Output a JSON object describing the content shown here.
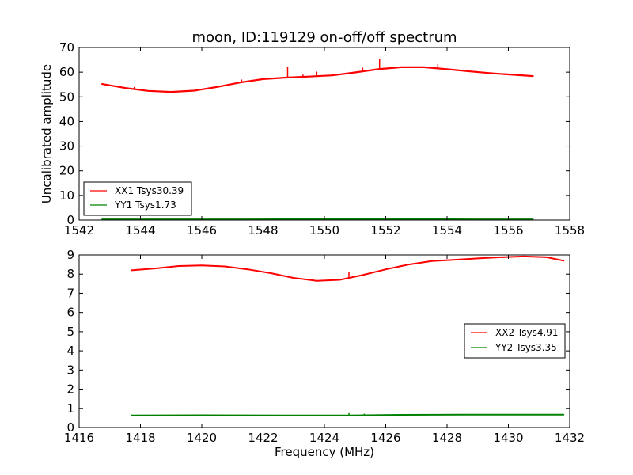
{
  "chart_data": [
    {
      "type": "line",
      "title": "moon, ID:119129 on-off/off spectrum",
      "xlabel": "",
      "ylabel": "Uncalibrated amplitude",
      "xlim": [
        1542,
        1558
      ],
      "ylim": [
        0,
        70
      ],
      "xticks": [
        "1542",
        "1544",
        "1546",
        "1548",
        "1550",
        "1552",
        "1554",
        "1556",
        "1558"
      ],
      "yticks": [
        "0",
        "10",
        "20",
        "30",
        "40",
        "50",
        "60",
        "70"
      ],
      "grid": false,
      "legend_position": "lower-left",
      "series": [
        {
          "name": "XX1 Tsys30.39",
          "color": "#ff0000",
          "x": [
            1542.75,
            1543.5,
            1544.25,
            1545.0,
            1545.75,
            1546.5,
            1547.25,
            1548.0,
            1548.75,
            1549.5,
            1550.25,
            1551.0,
            1551.75,
            1552.5,
            1553.25,
            1554.0,
            1554.75,
            1555.5,
            1556.25,
            1556.8
          ],
          "y": [
            55.2,
            53.6,
            52.4,
            52.0,
            52.5,
            54.0,
            55.8,
            57.2,
            57.8,
            58.2,
            58.7,
            59.9,
            61.2,
            62.0,
            62.0,
            61.2,
            60.3,
            59.5,
            58.9,
            58.4
          ],
          "spikes": [
            {
              "x": 1543.8,
              "y": 54.0
            },
            {
              "x": 1547.3,
              "y": 57.0
            },
            {
              "x": 1548.8,
              "y": 62.3
            },
            {
              "x": 1549.3,
              "y": 59.0
            },
            {
              "x": 1549.75,
              "y": 60.2
            },
            {
              "x": 1551.25,
              "y": 61.8
            },
            {
              "x": 1551.8,
              "y": 65.5
            },
            {
              "x": 1553.7,
              "y": 63.2
            }
          ]
        },
        {
          "name": "YY1 Tsys1.73",
          "color": "#008000",
          "x": [
            1542.75,
            1545.0,
            1547.5,
            1550.0,
            1552.5,
            1555.0,
            1556.8
          ],
          "y": [
            0.3,
            0.3,
            0.3,
            0.4,
            0.4,
            0.3,
            0.3
          ],
          "spikes": []
        }
      ]
    },
    {
      "type": "line",
      "title": "",
      "xlabel": "Frequency (MHz)",
      "ylabel": "",
      "xlim": [
        1416,
        1432
      ],
      "ylim": [
        0,
        9
      ],
      "xticks": [
        "1416",
        "1418",
        "1420",
        "1422",
        "1424",
        "1426",
        "1428",
        "1430",
        "1432"
      ],
      "yticks": [
        "0",
        "1",
        "2",
        "3",
        "4",
        "5",
        "6",
        "7",
        "8",
        "9"
      ],
      "grid": false,
      "legend_position": "center-right",
      "series": [
        {
          "name": "XX2 Tsys4.91",
          "color": "#ff0000",
          "x": [
            1417.7,
            1418.5,
            1419.25,
            1420.0,
            1420.75,
            1421.5,
            1422.25,
            1423.0,
            1423.75,
            1424.5,
            1425.25,
            1426.0,
            1426.75,
            1427.5,
            1428.25,
            1429.0,
            1429.75,
            1430.5,
            1431.25,
            1431.8
          ],
          "y": [
            8.2,
            8.3,
            8.42,
            8.45,
            8.4,
            8.25,
            8.05,
            7.8,
            7.65,
            7.7,
            7.95,
            8.25,
            8.5,
            8.68,
            8.75,
            8.82,
            8.88,
            8.92,
            8.88,
            8.7
          ],
          "spikes": [
            {
              "x": 1424.8,
              "y": 8.1
            }
          ]
        },
        {
          "name": "YY2 Tsys3.35",
          "color": "#008000",
          "x": [
            1417.7,
            1420.0,
            1422.5,
            1424.8,
            1426.5,
            1428.5,
            1430.5,
            1431.8
          ],
          "y": [
            0.63,
            0.64,
            0.63,
            0.63,
            0.66,
            0.67,
            0.67,
            0.67
          ],
          "spikes": [
            {
              "x": 1424.8,
              "y": 0.75
            },
            {
              "x": 1425.3,
              "y": 0.72
            },
            {
              "x": 1427.3,
              "y": 0.6
            }
          ]
        }
      ]
    }
  ]
}
